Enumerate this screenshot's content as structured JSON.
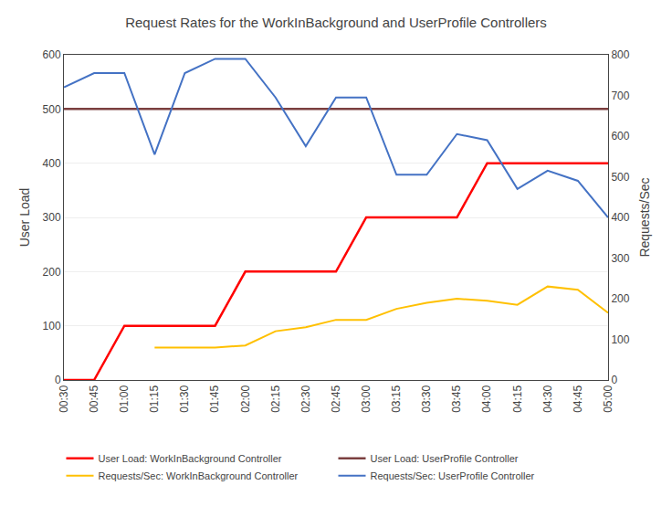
{
  "chart_data": {
    "type": "line",
    "title": "Request Rates for the WorkInBackground and UserProfile Controllers",
    "ylabel": "User Load",
    "y2label": "Requests/Sec",
    "categories": [
      "00:30",
      "00:45",
      "01:00",
      "01:15",
      "01:30",
      "01:45",
      "02:00",
      "02:15",
      "02:30",
      "02:45",
      "03:00",
      "03:15",
      "03:30",
      "03:45",
      "04:00",
      "04:15",
      "04:30",
      "04:45",
      "05:00"
    ],
    "series": [
      {
        "name": "User Load: WorkInBackground Controller",
        "color": "#FF0000",
        "axis": "y",
        "values": [
          0,
          0,
          100,
          100,
          100,
          100,
          200,
          200,
          200,
          200,
          300,
          300,
          300,
          300,
          400,
          400,
          400,
          400,
          400
        ]
      },
      {
        "name": "User Load: UserProfile Controller",
        "color": "#7B3F3F",
        "axis": "y",
        "values": [
          500,
          500,
          500,
          500,
          500,
          500,
          500,
          500,
          500,
          500,
          500,
          500,
          500,
          500,
          500,
          500,
          500,
          500,
          500
        ]
      },
      {
        "name": "Requests/Sec: WorkInBackground Controller",
        "color": "#FFC000",
        "axis": "y2",
        "values": [
          null,
          null,
          null,
          80,
          80,
          80,
          85,
          120,
          130,
          148,
          148,
          175,
          190,
          200,
          195,
          185,
          230,
          222,
          165
        ]
      },
      {
        "name": "Requests/Sec: UserProfile Controller",
        "color": "#4472C4",
        "axis": "y2",
        "values": [
          720,
          755,
          755,
          555,
          755,
          790,
          790,
          695,
          575,
          695,
          695,
          505,
          505,
          605,
          590,
          470,
          515,
          490,
          400
        ]
      }
    ],
    "ylim": [
      0,
      600
    ],
    "yticks": [
      0,
      100,
      200,
      300,
      400,
      500,
      600
    ],
    "y2lim": [
      0,
      800
    ],
    "y2ticks": [
      0,
      100,
      200,
      300,
      400,
      500,
      600,
      700,
      800
    ],
    "grid": true,
    "legend": "bottom"
  }
}
